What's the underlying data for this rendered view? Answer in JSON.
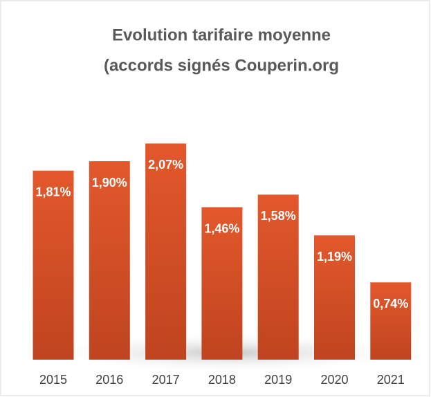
{
  "chart_data": {
    "type": "bar",
    "title": [
      "Evolution tarifaire moyenne",
      "(accords signés Couperin.org"
    ],
    "categories": [
      "2015",
      "2016",
      "2017",
      "2018",
      "2019",
      "2020",
      "2021"
    ],
    "values": [
      1.81,
      1.9,
      2.07,
      1.46,
      1.58,
      1.19,
      0.74
    ],
    "value_labels": [
      "1,81%",
      "1,90%",
      "2,07%",
      "1,46%",
      "1,58%",
      "1,19%",
      "0,74%"
    ],
    "color": "#d9522a"
  }
}
